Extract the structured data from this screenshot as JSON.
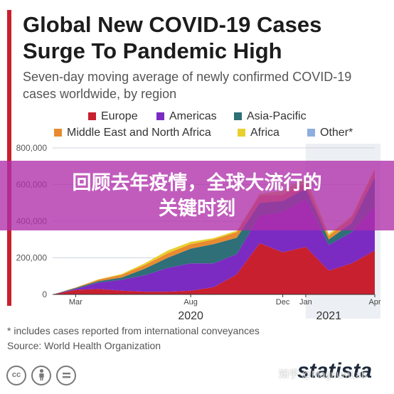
{
  "title_line1": "Global New COVID-19 Cases",
  "title_line2": "Surge To Pandemic High",
  "subtitle_line1": "Seven-day moving average of newly confirmed COVID-19",
  "subtitle_line2": "cases worldwide, by region",
  "legend": [
    {
      "label": "Europe",
      "color": "#c8202f"
    },
    {
      "label": "Americas",
      "color": "#7b2bc2"
    },
    {
      "label": "Asia-Pacific",
      "color": "#2e6f78"
    },
    {
      "label": "Middle East and North Africa",
      "color": "#e88a30"
    },
    {
      "label": "Africa",
      "color": "#e8cf2e"
    },
    {
      "label": "Other*",
      "color": "#8eaee0"
    }
  ],
  "banner": {
    "line1": "回顾去年疫情，全球大流行的",
    "line2": "关键时刻"
  },
  "footnote": "* includes cases reported from international conveyances",
  "source": "Source: World Health Organization",
  "cc_icons": [
    "cc-icon",
    "by-icon",
    "nd-icon"
  ],
  "brand": "statista",
  "watermark": "知乎 @MagnumLab",
  "chart_data": {
    "type": "area",
    "stacked": true,
    "y_tick_labels": [
      "0",
      "200,000",
      "400,000",
      "600,000",
      "800,000"
    ],
    "y_ticks": [
      0,
      200000,
      400000,
      600000,
      800000
    ],
    "ylim": [
      0,
      800000
    ],
    "x_tick_labels": [
      "Mar",
      "Aug",
      "Dec",
      "Jan",
      "Apr"
    ],
    "x_tick_positions": [
      "2020-03",
      "2020-08",
      "2020-12",
      "2021-01",
      "2021-04"
    ],
    "year_labels": [
      "2020",
      "2021"
    ],
    "year_label_positions": [
      "2020-08",
      "2021-02"
    ],
    "shaded_period": [
      "2021-01",
      "2021-04"
    ],
    "x": [
      "2020-02",
      "2020-03",
      "2020-04",
      "2020-05",
      "2020-06",
      "2020-07",
      "2020-08",
      "2020-09",
      "2020-10",
      "2020-11",
      "2020-12",
      "2021-01",
      "2021-02",
      "2021-03",
      "2021-04"
    ],
    "series": [
      {
        "name": "Europe",
        "values": [
          0,
          25000,
          30000,
          20000,
          15000,
          15000,
          20000,
          40000,
          110000,
          280000,
          230000,
          260000,
          130000,
          170000,
          240000
        ]
      },
      {
        "name": "Americas",
        "values": [
          0,
          5000,
          35000,
          60000,
          90000,
          130000,
          150000,
          130000,
          110000,
          150000,
          220000,
          260000,
          140000,
          170000,
          240000
        ]
      },
      {
        "name": "Asia-Pacific",
        "values": [
          0,
          5000,
          8000,
          12000,
          35000,
          55000,
          80000,
          105000,
          90000,
          70000,
          60000,
          60000,
          30000,
          50000,
          160000
        ]
      },
      {
        "name": "Middle East and North Africa",
        "values": [
          0,
          3000,
          8000,
          15000,
          20000,
          25000,
          25000,
          25000,
          30000,
          40000,
          35000,
          30000,
          20000,
          30000,
          40000
        ]
      },
      {
        "name": "Africa",
        "values": [
          0,
          0,
          2000,
          5000,
          10000,
          15000,
          12000,
          8000,
          8000,
          10000,
          20000,
          30000,
          10000,
          10000,
          10000
        ]
      },
      {
        "name": "Other*",
        "values": [
          0,
          0,
          0,
          0,
          0,
          0,
          0,
          0,
          0,
          0,
          0,
          0,
          0,
          0,
          0
        ]
      }
    ]
  }
}
